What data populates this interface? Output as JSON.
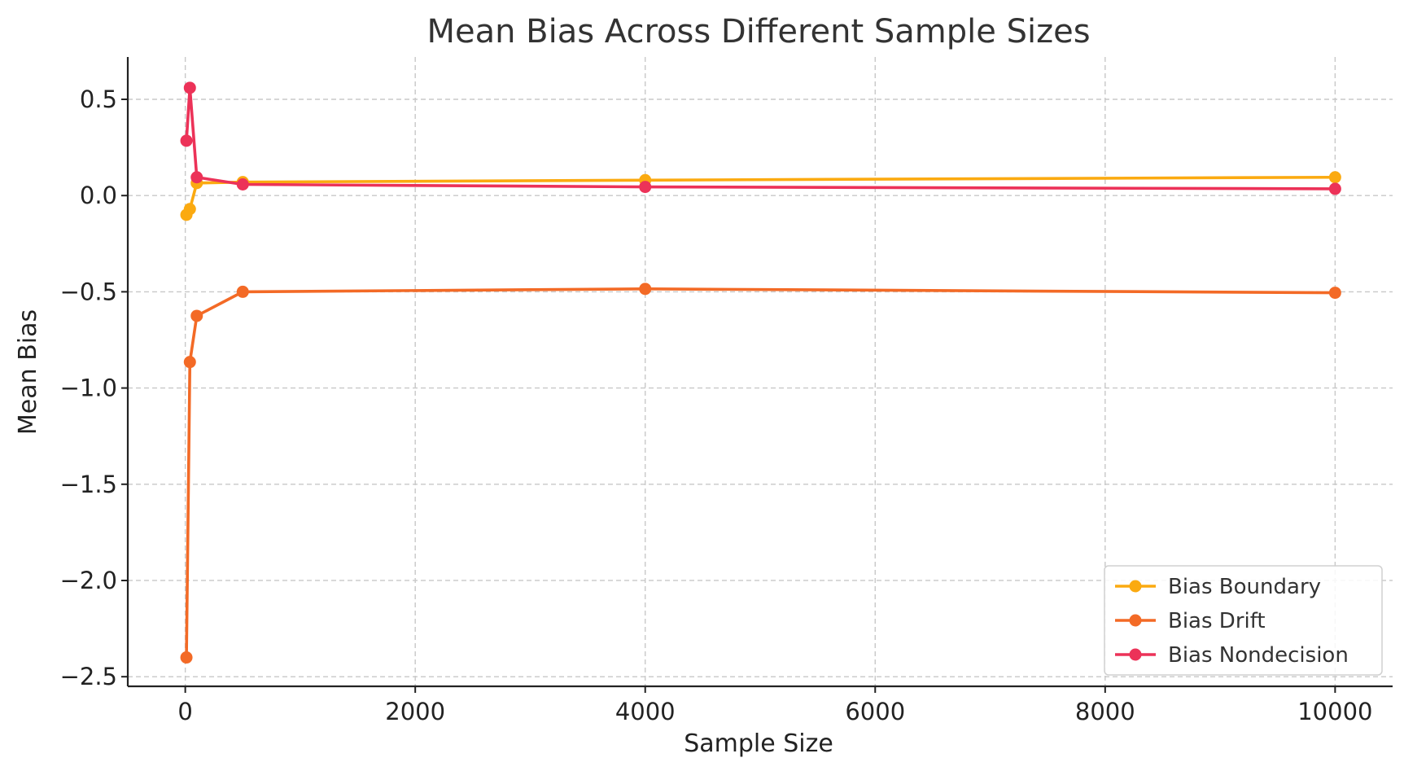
{
  "chart_data": {
    "type": "line",
    "title": "Mean Bias Across Different Sample Sizes",
    "xlabel": "Sample Size",
    "ylabel": "Mean Bias",
    "x": [
      10,
      40,
      100,
      500,
      4000,
      10000
    ],
    "xlim": [
      -500,
      10500
    ],
    "ylim": [
      -2.55,
      0.72
    ],
    "xticks": [
      0,
      2000,
      4000,
      6000,
      8000,
      10000
    ],
    "xtick_labels": [
      "0",
      "2000",
      "4000",
      "6000",
      "8000",
      "10000"
    ],
    "yticks": [
      0.5,
      0.0,
      -0.5,
      -1.0,
      -1.5,
      -2.0,
      -2.5
    ],
    "ytick_labels": [
      "0.5",
      "0.0",
      "−0.5",
      "−1.0",
      "−1.5",
      "−2.0",
      "−2.5"
    ],
    "grid": true,
    "legend": {
      "position": "lower-right"
    },
    "series": [
      {
        "name": "Bias Boundary",
        "color": "#fbaa10",
        "values": [
          -0.1,
          -0.07,
          0.065,
          0.07,
          0.08,
          0.095
        ]
      },
      {
        "name": "Bias Drift",
        "color": "#f36a26",
        "values": [
          -2.4,
          -0.865,
          -0.625,
          -0.5,
          -0.485,
          -0.505
        ]
      },
      {
        "name": "Bias Nondecision",
        "color": "#ec3258",
        "values": [
          0.285,
          0.56,
          0.095,
          0.058,
          0.045,
          0.035
        ]
      }
    ]
  }
}
